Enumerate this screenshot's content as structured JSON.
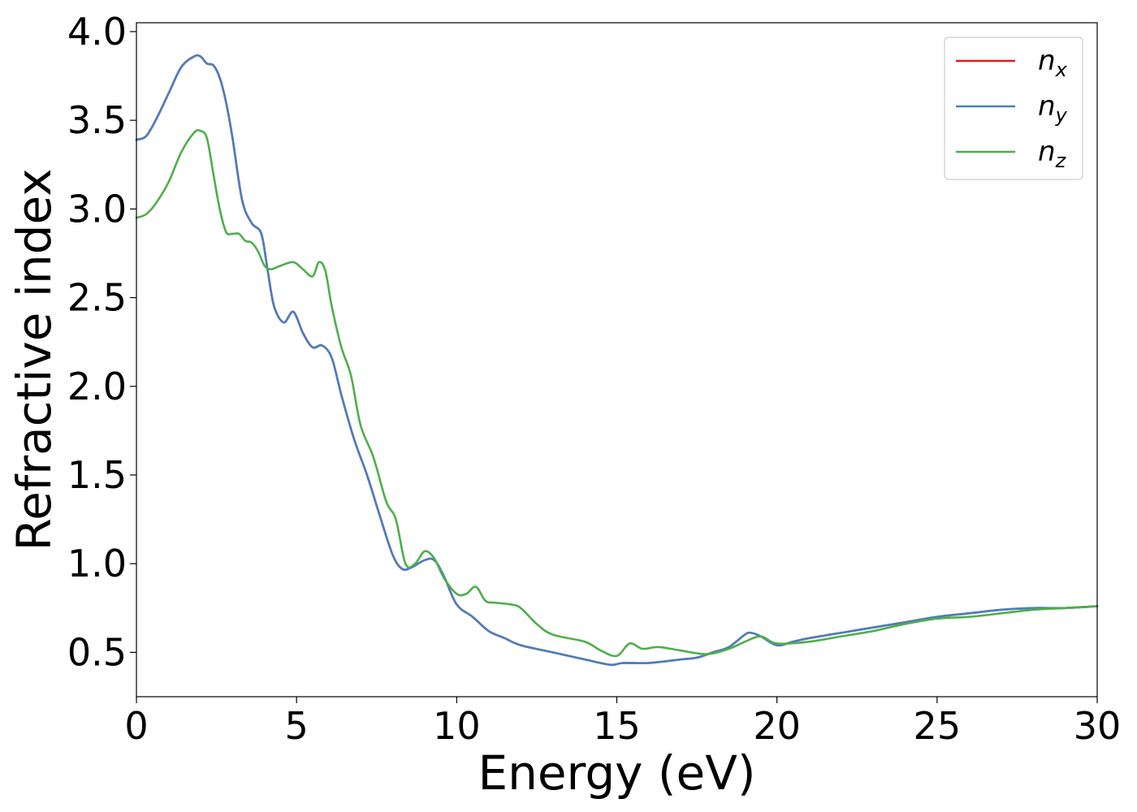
{
  "chart_data": {
    "type": "line",
    "xlabel": "Energy (eV)",
    "ylabel": "Refractive index",
    "xlim": [
      0,
      30
    ],
    "ylim": [
      0.25,
      4.05
    ],
    "xticks": [
      0,
      5,
      10,
      15,
      20,
      25,
      30
    ],
    "yticks": [
      0.5,
      1.0,
      1.5,
      2.0,
      2.5,
      3.0,
      3.5,
      4.0
    ],
    "xtick_labels": [
      "0",
      "5",
      "10",
      "15",
      "20",
      "25",
      "30"
    ],
    "ytick_labels": [
      "0.5",
      "1.0",
      "1.5",
      "2.0",
      "2.5",
      "3.0",
      "3.5",
      "4.0"
    ],
    "grid": false,
    "legend_position": "top-right",
    "series": [
      {
        "name": "n_x",
        "legend_base": "n",
        "legend_sub": "x",
        "color": "#e41a1c",
        "x": [
          0,
          0.3,
          0.6,
          1.0,
          1.4,
          1.8,
          2.0,
          2.2,
          2.4,
          2.6,
          2.8,
          3.0,
          3.3,
          3.6,
          3.9,
          4.1,
          4.3,
          4.6,
          4.9,
          5.2,
          5.5,
          5.8,
          6.1,
          6.4,
          6.8,
          7.2,
          7.6,
          8.0,
          8.3,
          8.6,
          9.0,
          9.3,
          9.6,
          10.0,
          10.5,
          11.0,
          11.5,
          12.0,
          13.0,
          14.0,
          14.8,
          15.2,
          16.0,
          17.0,
          17.5,
          18.0,
          18.5,
          19.0,
          19.2,
          19.5,
          20.0,
          20.5,
          21.0,
          22.0,
          23.0,
          24.0,
          25.0,
          26.0,
          27.0,
          28.0,
          29.0,
          30.0
        ],
        "y": [
          3.39,
          3.41,
          3.5,
          3.65,
          3.8,
          3.86,
          3.86,
          3.82,
          3.81,
          3.74,
          3.6,
          3.4,
          3.05,
          2.92,
          2.86,
          2.65,
          2.45,
          2.36,
          2.42,
          2.3,
          2.22,
          2.23,
          2.16,
          1.95,
          1.7,
          1.5,
          1.27,
          1.05,
          0.97,
          0.98,
          1.02,
          1.02,
          0.93,
          0.77,
          0.7,
          0.62,
          0.58,
          0.54,
          0.5,
          0.46,
          0.43,
          0.44,
          0.44,
          0.46,
          0.47,
          0.5,
          0.53,
          0.6,
          0.61,
          0.59,
          0.54,
          0.56,
          0.58,
          0.61,
          0.64,
          0.67,
          0.7,
          0.72,
          0.74,
          0.75,
          0.75,
          0.76
        ]
      },
      {
        "name": "n_y",
        "legend_base": "n",
        "legend_sub": "y",
        "color": "#4a7fbe",
        "x": [
          0,
          0.3,
          0.6,
          1.0,
          1.4,
          1.8,
          2.0,
          2.2,
          2.4,
          2.6,
          2.8,
          3.0,
          3.3,
          3.6,
          3.9,
          4.1,
          4.3,
          4.6,
          4.9,
          5.2,
          5.5,
          5.8,
          6.1,
          6.4,
          6.8,
          7.2,
          7.6,
          8.0,
          8.3,
          8.6,
          9.0,
          9.3,
          9.6,
          10.0,
          10.5,
          11.0,
          11.5,
          12.0,
          13.0,
          14.0,
          14.8,
          15.2,
          16.0,
          17.0,
          17.5,
          18.0,
          18.5,
          19.0,
          19.2,
          19.5,
          20.0,
          20.5,
          21.0,
          22.0,
          23.0,
          24.0,
          25.0,
          26.0,
          27.0,
          28.0,
          29.0,
          30.0
        ],
        "y": [
          3.39,
          3.41,
          3.5,
          3.65,
          3.8,
          3.86,
          3.86,
          3.82,
          3.81,
          3.74,
          3.6,
          3.4,
          3.05,
          2.92,
          2.86,
          2.65,
          2.45,
          2.36,
          2.42,
          2.3,
          2.22,
          2.23,
          2.16,
          1.95,
          1.7,
          1.5,
          1.27,
          1.05,
          0.97,
          0.98,
          1.02,
          1.02,
          0.93,
          0.77,
          0.7,
          0.62,
          0.58,
          0.54,
          0.5,
          0.46,
          0.43,
          0.44,
          0.44,
          0.46,
          0.47,
          0.5,
          0.53,
          0.6,
          0.61,
          0.59,
          0.54,
          0.56,
          0.58,
          0.61,
          0.64,
          0.67,
          0.7,
          0.72,
          0.74,
          0.75,
          0.75,
          0.76
        ]
      },
      {
        "name": "n_z",
        "legend_base": "n",
        "legend_sub": "z",
        "color": "#4daf4a",
        "x": [
          0,
          0.3,
          0.6,
          1.0,
          1.4,
          1.8,
          2.0,
          2.2,
          2.4,
          2.6,
          2.8,
          3.0,
          3.2,
          3.4,
          3.6,
          3.8,
          4.0,
          4.2,
          4.5,
          4.9,
          5.2,
          5.5,
          5.7,
          5.9,
          6.1,
          6.4,
          6.7,
          7.0,
          7.4,
          7.8,
          8.1,
          8.4,
          8.7,
          9.0,
          9.3,
          9.6,
          10.0,
          10.3,
          10.6,
          10.9,
          11.2,
          11.7,
          12.0,
          12.5,
          13.0,
          14.0,
          14.5,
          15.0,
          15.4,
          15.8,
          16.3,
          17.0,
          17.8,
          18.5,
          19.0,
          19.5,
          20.0,
          21.0,
          22.0,
          23.0,
          24.0,
          25.0,
          26.0,
          27.0,
          28.0,
          29.0,
          30.0
        ],
        "y": [
          2.95,
          2.97,
          3.03,
          3.15,
          3.32,
          3.43,
          3.44,
          3.4,
          3.2,
          3.0,
          2.87,
          2.86,
          2.86,
          2.82,
          2.81,
          2.76,
          2.68,
          2.66,
          2.68,
          2.7,
          2.66,
          2.62,
          2.7,
          2.65,
          2.45,
          2.22,
          2.06,
          1.78,
          1.6,
          1.35,
          1.25,
          1.0,
          1.0,
          1.07,
          1.03,
          0.92,
          0.83,
          0.83,
          0.87,
          0.79,
          0.78,
          0.77,
          0.75,
          0.66,
          0.6,
          0.56,
          0.51,
          0.48,
          0.55,
          0.52,
          0.53,
          0.51,
          0.49,
          0.52,
          0.56,
          0.59,
          0.55,
          0.56,
          0.59,
          0.62,
          0.66,
          0.69,
          0.7,
          0.72,
          0.74,
          0.75,
          0.76
        ]
      }
    ]
  }
}
